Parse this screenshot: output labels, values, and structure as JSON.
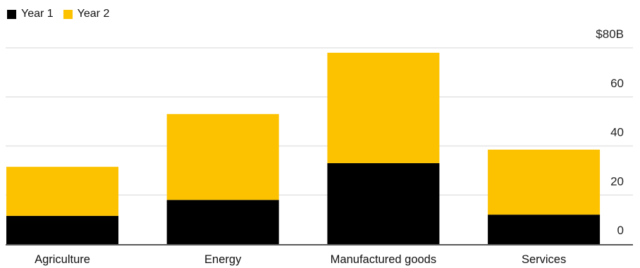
{
  "chart_data": {
    "type": "bar",
    "stacked": true,
    "categories": [
      "Agriculture",
      "Energy",
      "Manufactured goods",
      "Services"
    ],
    "series": [
      {
        "name": "Year 1",
        "color": "#000000",
        "values": [
          11.5,
          18,
          33,
          12
        ]
      },
      {
        "name": "Year 2",
        "color": "#fcc200",
        "values": [
          20,
          35,
          45,
          26.5
        ]
      }
    ],
    "ylim": [
      0,
      80
    ],
    "yticks": [
      0,
      20,
      40,
      60,
      80
    ],
    "ytick_labels": [
      "0",
      "20",
      "40",
      "60",
      "$80B"
    ],
    "y_axis_position": "right",
    "grid": true,
    "legend_position": "top-left",
    "title": "",
    "xlabel": "",
    "ylabel": ""
  }
}
